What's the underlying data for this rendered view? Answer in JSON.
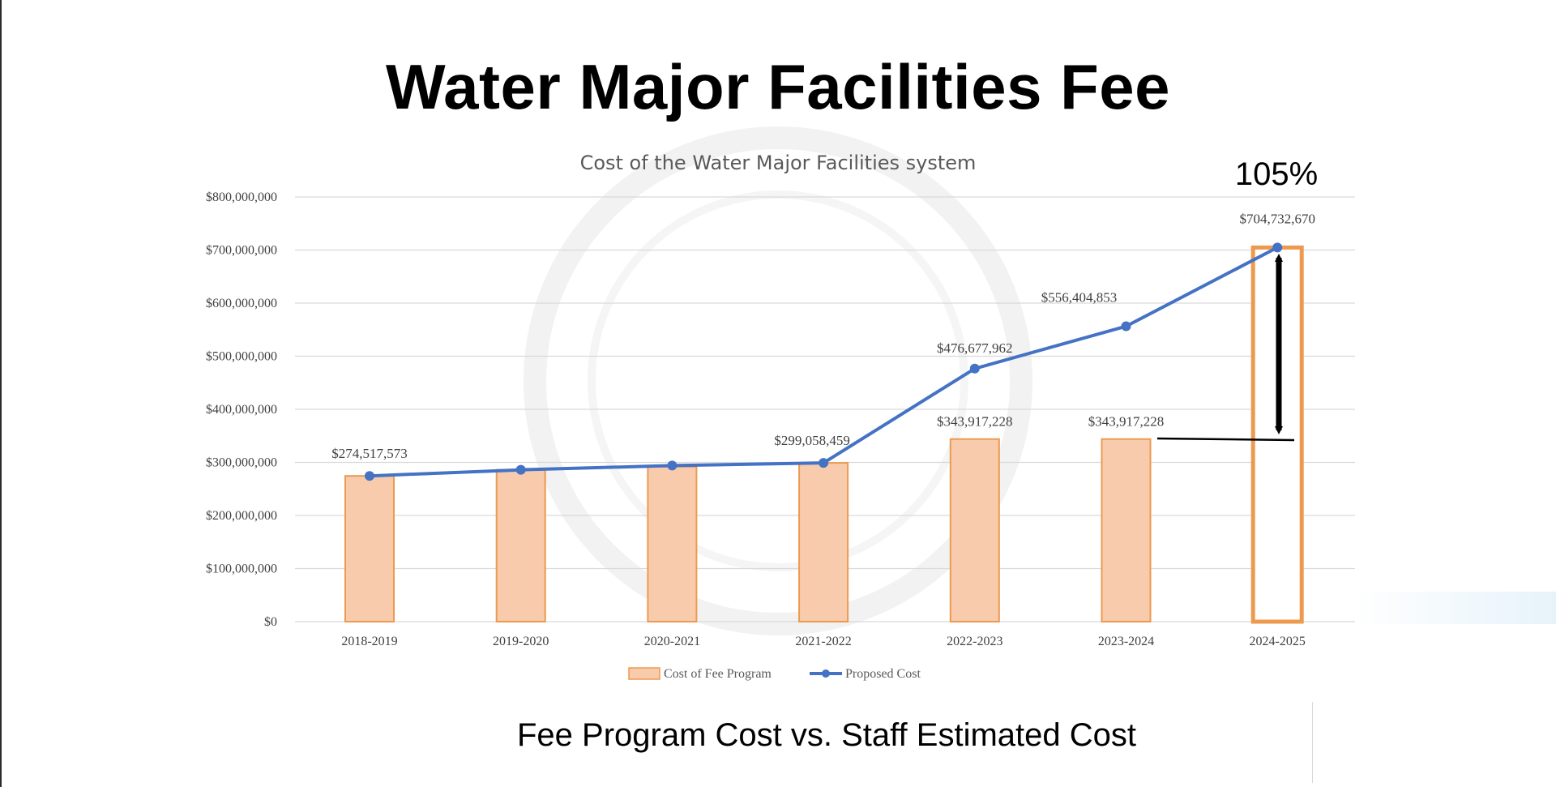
{
  "slide": {
    "title": "Water Major Facilities Fee",
    "caption": "Fee Program Cost vs. Staff Estimated Cost"
  },
  "annotation": {
    "percent_label": "105%"
  },
  "colors": {
    "bar_fill": "#f8cbad",
    "bar_edge": "#ed9a4f",
    "line": "#4472c4",
    "grid": "#d9d9d9",
    "arrow": "#000000"
  },
  "chart_data": {
    "type": "bar",
    "title": "Cost of the Water Major Facilities system",
    "categories": [
      "2018-2019",
      "2019-2020",
      "2020-2021",
      "2021-2022",
      "2022-2023",
      "2023-2024",
      "2024-2025"
    ],
    "ylim": [
      0,
      800000000
    ],
    "yticks": [
      0,
      100000000,
      200000000,
      300000000,
      400000000,
      500000000,
      600000000,
      700000000,
      800000000
    ],
    "ytick_labels": [
      "$0",
      "$100,000,000",
      "$200,000,000",
      "$300,000,000",
      "$400,000,000",
      "$500,000,000",
      "$600,000,000",
      "$700,000,000",
      "$800,000,000"
    ],
    "grid": true,
    "legend_position": "bottom",
    "series": [
      {
        "name": "Cost of Fee Program",
        "type": "bar",
        "values": [
          274517573,
          286000000,
          292000000,
          299058459,
          343917228,
          343917228,
          704732670
        ],
        "labels": [
          "",
          "",
          "",
          "",
          "$343,917,228",
          "$343,917,228",
          ""
        ]
      },
      {
        "name": "Proposed Cost",
        "type": "line",
        "values": [
          274517573,
          286000000,
          294000000,
          299058459,
          476677962,
          556404853,
          704732670
        ],
        "labels": [
          "$274,517,573",
          "",
          "",
          "$299,058,459",
          "$476,677,962",
          "$556,404,853",
          "$704,732,670"
        ]
      }
    ]
  }
}
